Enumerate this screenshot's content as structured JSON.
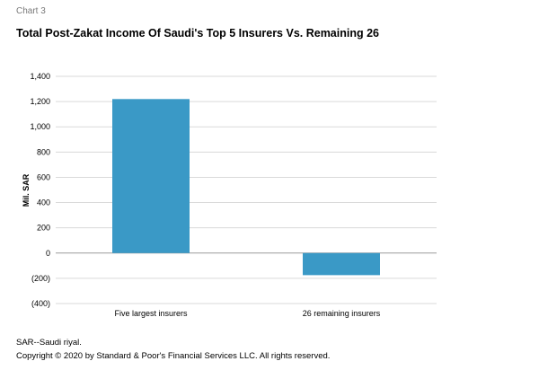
{
  "header": {
    "chart_number": "Chart 3",
    "title": "Total Post-Zakat Income Of Saudi's Top 5 Insurers Vs. Remaining 26"
  },
  "chart_data": {
    "type": "bar",
    "categories": [
      "Five largest insurers",
      "26 remaining insurers"
    ],
    "values": [
      1220,
      -175
    ],
    "ylabel": "Mil. SAR",
    "xlabel": "",
    "ylim": [
      -400,
      1400
    ],
    "yticks": [
      1400,
      1200,
      1000,
      800,
      600,
      400,
      200,
      0,
      -200,
      -400
    ],
    "ytick_labels": [
      "1,400",
      "1,200",
      "1,000",
      "800",
      "600",
      "400",
      "200",
      "0",
      "(200)",
      "(400)"
    ],
    "grid": true,
    "bar_color": "#3a99c6"
  },
  "footer": {
    "note": "SAR--Saudi riyal.",
    "copyright": "Copyright © 2020 by Standard & Poor's Financial Services LLC. All rights reserved."
  }
}
